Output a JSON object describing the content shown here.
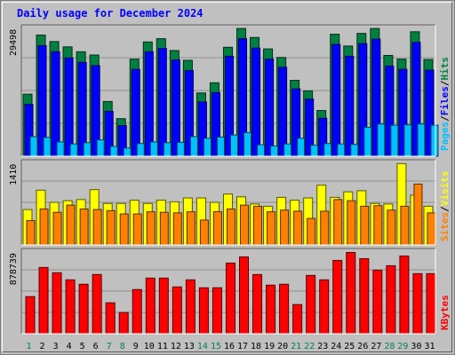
{
  "title": "Daily usage for December 2024",
  "colors": {
    "background": "#c0c0c0",
    "title": "#0000ff",
    "hits": "#008040",
    "files": "#0000ff",
    "pages": "#00c0ff",
    "visits": "#ffff00",
    "sites": "#ff8000",
    "kbytes": "#ff0000",
    "label_slash": "#000000",
    "day_normal": "#000000",
    "day_weekend": "#00805c"
  },
  "side_labels": {
    "top": [
      {
        "text": "Hits",
        "key": "hits"
      },
      {
        "text": "/",
        "key": "label_slash"
      },
      {
        "text": "Files",
        "key": "files"
      },
      {
        "text": "/",
        "key": "label_slash"
      },
      {
        "text": "Pages",
        "key": "pages"
      }
    ],
    "middle": [
      {
        "text": "Visits",
        "key": "visits"
      },
      {
        "text": "/",
        "key": "label_slash"
      },
      {
        "text": "Sites",
        "key": "sites"
      }
    ],
    "bottom": [
      {
        "text": "KBytes",
        "key": "kbytes"
      }
    ]
  },
  "chart_data": [
    {
      "type": "bar",
      "panel": "hits-files-pages",
      "ytick": "29498",
      "ylim": [
        0,
        32200
      ],
      "categories": [
        "1",
        "2",
        "3",
        "4",
        "5",
        "6",
        "7",
        "8",
        "9",
        "10",
        "11",
        "12",
        "13",
        "14",
        "15",
        "16",
        "17",
        "18",
        "19",
        "20",
        "21",
        "22",
        "23",
        "24",
        "25",
        "26",
        "27",
        "28",
        "29",
        "30",
        "31"
      ],
      "series": [
        {
          "name": "Hits",
          "color_key": "hits",
          "values": [
            15200,
            29700,
            28100,
            26800,
            25600,
            24800,
            13400,
            9200,
            23800,
            28000,
            28800,
            25900,
            23500,
            15500,
            18000,
            26700,
            31300,
            29100,
            26300,
            24200,
            18600,
            16000,
            11200,
            29900,
            27000,
            30100,
            31300,
            24700,
            23800,
            30500,
            23700
          ]
        },
        {
          "name": "Files",
          "color_key": "files",
          "values": [
            12700,
            27100,
            25600,
            24100,
            23000,
            22200,
            11000,
            7500,
            21300,
            25600,
            26400,
            23600,
            21000,
            13300,
            15600,
            24500,
            28800,
            26500,
            23800,
            21800,
            16500,
            14000,
            9300,
            27400,
            24500,
            27600,
            28700,
            22100,
            21300,
            27900,
            21100
          ]
        },
        {
          "name": "Pages",
          "color_key": "pages",
          "values": [
            4800,
            4600,
            3500,
            3000,
            3300,
            4000,
            2400,
            2000,
            3100,
            3500,
            3300,
            3400,
            4800,
            4400,
            4700,
            5200,
            5800,
            2800,
            2500,
            3000,
            4400,
            2700,
            3100,
            3000,
            2900,
            7100,
            7900,
            7600,
            7700,
            7900,
            7600
          ]
        }
      ]
    },
    {
      "type": "bar",
      "panel": "visits-sites",
      "ytick": "1410",
      "ylim": [
        0,
        1540
      ],
      "categories": [
        "1",
        "2",
        "3",
        "4",
        "5",
        "6",
        "7",
        "8",
        "9",
        "10",
        "11",
        "12",
        "13",
        "14",
        "15",
        "16",
        "17",
        "18",
        "19",
        "20",
        "21",
        "22",
        "23",
        "24",
        "25",
        "26",
        "27",
        "28",
        "29",
        "30",
        "31"
      ],
      "series": [
        {
          "name": "Visits",
          "color_key": "visits",
          "values": [
            640,
            990,
            770,
            800,
            820,
            1000,
            750,
            750,
            810,
            750,
            810,
            780,
            850,
            850,
            770,
            920,
            870,
            740,
            700,
            860,
            810,
            850,
            1080,
            860,
            960,
            980,
            750,
            740,
            1470,
            900,
            700
          ]
        },
        {
          "name": "Sites",
          "color_key": "sites",
          "values": [
            440,
            650,
            590,
            720,
            650,
            640,
            620,
            560,
            560,
            600,
            590,
            580,
            600,
            450,
            600,
            650,
            720,
            700,
            600,
            630,
            610,
            480,
            610,
            820,
            800,
            700,
            710,
            630,
            700,
            1100,
            580
          ]
        }
      ]
    },
    {
      "type": "bar",
      "panel": "kbytes",
      "ytick": "878739",
      "ylim": [
        0,
        965000
      ],
      "categories": [
        "1",
        "2",
        "3",
        "4",
        "5",
        "6",
        "7",
        "8",
        "9",
        "10",
        "11",
        "12",
        "13",
        "14",
        "15",
        "16",
        "17",
        "18",
        "19",
        "20",
        "21",
        "22",
        "23",
        "24",
        "25",
        "26",
        "27",
        "28",
        "29",
        "30",
        "31"
      ],
      "series": [
        {
          "name": "KBytes",
          "color_key": "kbytes",
          "values": [
            420000,
            750000,
            690000,
            610000,
            560000,
            670000,
            350000,
            240000,
            500000,
            630000,
            630000,
            530000,
            610000,
            520000,
            520000,
            800000,
            870000,
            670000,
            550000,
            560000,
            330000,
            660000,
            610000,
            830000,
            920000,
            850000,
            720000,
            770000,
            880000,
            680000,
            680000
          ]
        }
      ]
    }
  ],
  "day_labels": [
    {
      "text": "1",
      "weekend": true
    },
    {
      "text": "2",
      "weekend": false
    },
    {
      "text": "3",
      "weekend": false
    },
    {
      "text": "4",
      "weekend": false
    },
    {
      "text": "5",
      "weekend": false
    },
    {
      "text": "6",
      "weekend": false
    },
    {
      "text": "7",
      "weekend": true
    },
    {
      "text": "8",
      "weekend": true
    },
    {
      "text": "9",
      "weekend": false
    },
    {
      "text": "10",
      "weekend": false
    },
    {
      "text": "11",
      "weekend": false
    },
    {
      "text": "12",
      "weekend": false
    },
    {
      "text": "13",
      "weekend": false
    },
    {
      "text": "14",
      "weekend": true
    },
    {
      "text": "15",
      "weekend": true
    },
    {
      "text": "16",
      "weekend": false
    },
    {
      "text": "17",
      "weekend": false
    },
    {
      "text": "18",
      "weekend": false
    },
    {
      "text": "19",
      "weekend": false
    },
    {
      "text": "20",
      "weekend": false
    },
    {
      "text": "21",
      "weekend": true
    },
    {
      "text": "22",
      "weekend": true
    },
    {
      "text": "23",
      "weekend": false
    },
    {
      "text": "24",
      "weekend": false
    },
    {
      "text": "25",
      "weekend": false
    },
    {
      "text": "26",
      "weekend": false
    },
    {
      "text": "27",
      "weekend": false
    },
    {
      "text": "28",
      "weekend": true
    },
    {
      "text": "29",
      "weekend": true
    },
    {
      "text": "30",
      "weekend": false
    },
    {
      "text": "31",
      "weekend": false
    }
  ]
}
